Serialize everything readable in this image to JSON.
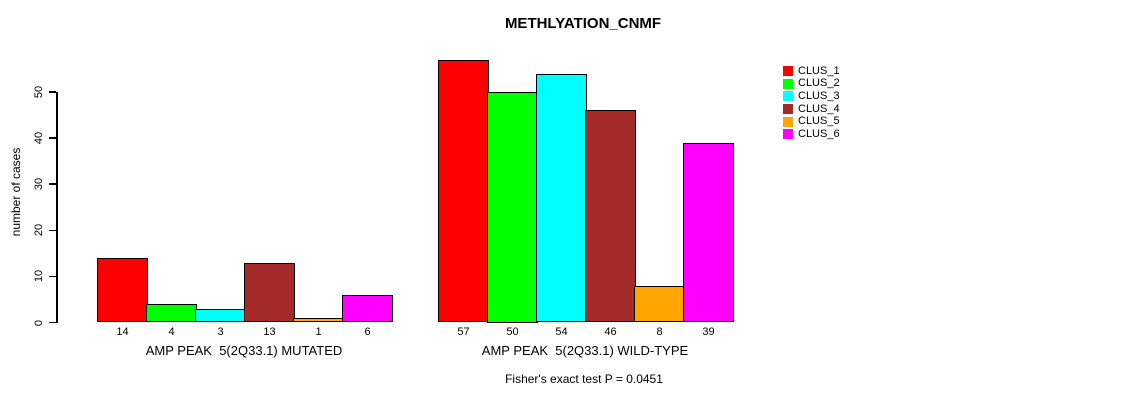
{
  "title": "METHLYATION_CNMF",
  "y_axis_label": "number of cases",
  "fisher_note": "Fisher's exact test P = 0.0451",
  "chart_data": {
    "type": "bar",
    "title": "METHLYATION_CNMF",
    "xlabel": "",
    "ylabel": "number of cases",
    "categories": [
      "AMP PEAK  5(2Q33.1) MUTATED",
      "AMP PEAK  5(2Q33.1) WILD-TYPE"
    ],
    "series": [
      {
        "name": "CLUS_1",
        "color": "#FF0000",
        "values": [
          14,
          57
        ]
      },
      {
        "name": "CLUS_2",
        "color": "#00FF00",
        "values": [
          4,
          50
        ]
      },
      {
        "name": "CLUS_3",
        "color": "#00FFFF",
        "values": [
          3,
          54
        ]
      },
      {
        "name": "CLUS_4",
        "color": "#A52A2A",
        "values": [
          13,
          46
        ]
      },
      {
        "name": "CLUS_5",
        "color": "#FFA500",
        "values": [
          1,
          8
        ]
      },
      {
        "name": "CLUS_6",
        "color": "#FF00FF",
        "values": [
          6,
          39
        ]
      }
    ],
    "bar_value_labels": [
      [
        14,
        4,
        3,
        13,
        1,
        6
      ],
      [
        57,
        50,
        54,
        46,
        8,
        39
      ]
    ],
    "yticks": [
      0,
      10,
      20,
      30,
      40,
      50
    ],
    "ylim": [
      0,
      57.5
    ],
    "grid": false,
    "legend_position": "top-right",
    "annotation": "Fisher's exact test P = 0.0451"
  }
}
